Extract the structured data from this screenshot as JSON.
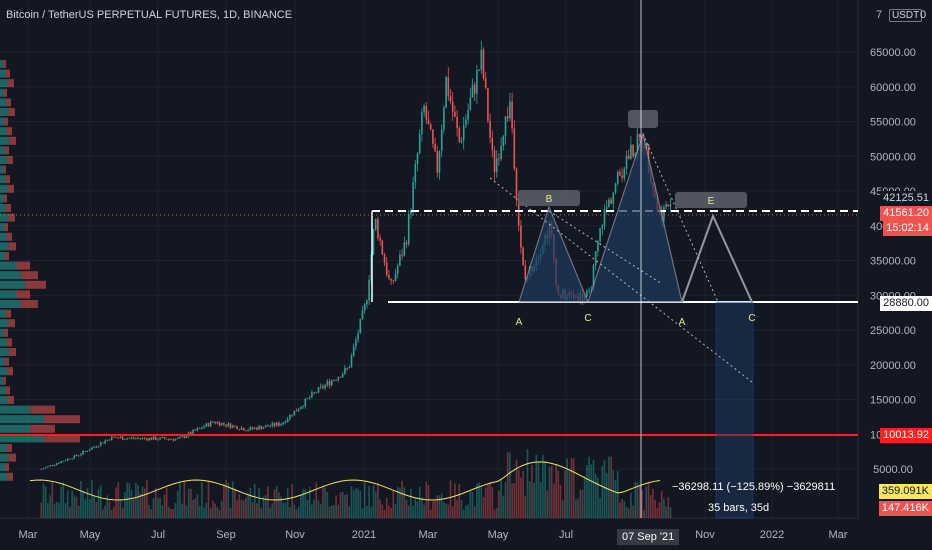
{
  "header": {
    "title": "Bitcoin / TetherUS PERPETUAL FUTURES, 1D, BINANCE",
    "currency": "USDT",
    "currency_suffix": "0",
    "axis_top_digit": "7"
  },
  "price_tags": {
    "label_42125": "42125.51",
    "current_price": "41561.20",
    "countdown": "15:02:14",
    "support": "28880.00",
    "low_line": "10013.92",
    "vol_ma": "359.091K",
    "volume": "147.416K"
  },
  "measure": {
    "line1": "−36298.11 (−125.89%) −3629811",
    "line2": "35 bars, 35d"
  },
  "time_badge": "07 Sep '21",
  "pattern_labels": [
    "A",
    "C",
    "A",
    "C",
    "B",
    "E"
  ],
  "colors": {
    "background": "#131722",
    "up": "#26a69a",
    "down": "#ef5350",
    "text": "#d1d4dc",
    "red_line": "#ff1e1e",
    "pattern_fill": "#1e3a5f",
    "label_yellow": "#f0e68c"
  },
  "chart_data": {
    "type": "candlestick",
    "y_ticks": [
      "65000.00",
      "60000.00",
      "55000.00",
      "50000.00",
      "45000.00",
      "40000.00",
      "35000.00",
      "30000.00",
      "25000.00",
      "20000.00",
      "15000.00",
      "10000.00",
      "5000.00"
    ],
    "x_ticks": [
      "Mar",
      "May",
      "Jul",
      "Sep",
      "Nov",
      "2021",
      "Mar",
      "May",
      "Jul",
      "Sep",
      "Nov",
      "2022",
      "Mar"
    ],
    "ylim": [
      0,
      70000
    ],
    "price_path": [
      {
        "x": "2020-03-13",
        "y": 5000
      },
      {
        "x": "2020-04-15",
        "y": 7000
      },
      {
        "x": "2020-05-15",
        "y": 9500
      },
      {
        "x": "2020-07-15",
        "y": 9300
      },
      {
        "x": "2020-08-15",
        "y": 11800
      },
      {
        "x": "2020-09-15",
        "y": 10700
      },
      {
        "x": "2020-10-15",
        "y": 11500
      },
      {
        "x": "2020-11-15",
        "y": 16000
      },
      {
        "x": "2020-12-15",
        "y": 19500
      },
      {
        "x": "2020-12-31",
        "y": 29000
      },
      {
        "x": "2021-01-08",
        "y": 41000
      },
      {
        "x": "2021-01-22",
        "y": 31000
      },
      {
        "x": "2021-02-05",
        "y": 38000
      },
      {
        "x": "2021-02-21",
        "y": 57000
      },
      {
        "x": "2021-03-05",
        "y": 48000
      },
      {
        "x": "2021-03-13",
        "y": 61000
      },
      {
        "x": "2021-03-25",
        "y": 52000
      },
      {
        "x": "2021-04-14",
        "y": 64000
      },
      {
        "x": "2021-04-25",
        "y": 48000
      },
      {
        "x": "2021-05-10",
        "y": 58000
      },
      {
        "x": "2021-05-19",
        "y": 37000
      },
      {
        "x": "2021-05-23",
        "y": 32000
      },
      {
        "x": "2021-06-15",
        "y": 40000
      },
      {
        "x": "2021-06-22",
        "y": 30000
      },
      {
        "x": "2021-07-20",
        "y": 29800
      },
      {
        "x": "2021-08-01",
        "y": 41000
      },
      {
        "x": "2021-08-22",
        "y": 49500
      },
      {
        "x": "2021-09-07",
        "y": 52900
      },
      {
        "x": "2021-09-21",
        "y": 41500
      },
      {
        "x": "2021-09-30",
        "y": 43000
      },
      {
        "x": "2021-10-03",
        "y": 41561
      }
    ]
  }
}
